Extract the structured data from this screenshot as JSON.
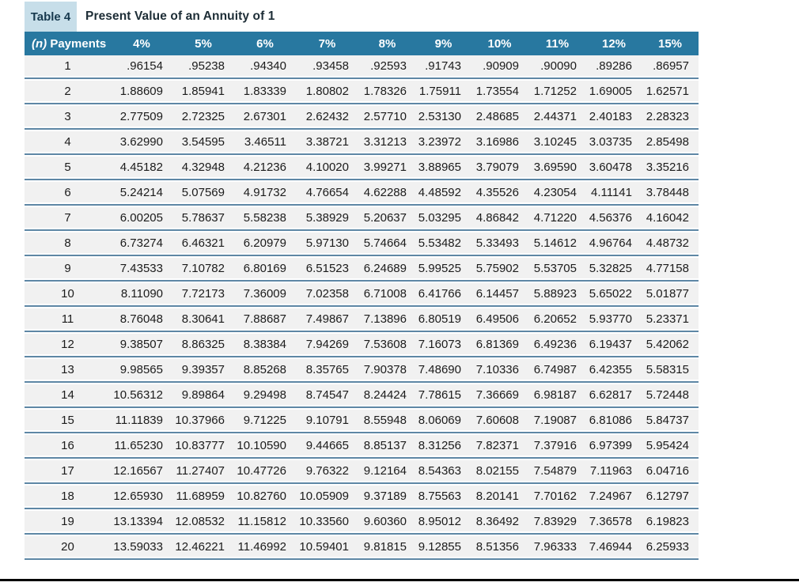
{
  "title": {
    "badge": "Table 4",
    "text": "Present Value of an Annuity of 1"
  },
  "table": {
    "header": {
      "payments_italic": "(n)",
      "payments_label": "Payments",
      "rates": [
        "4%",
        "5%",
        "6%",
        "7%",
        "8%",
        "9%",
        "10%",
        "11%",
        "12%",
        "15%"
      ]
    },
    "rows": [
      [
        "1",
        ".96154",
        ".95238",
        ".94340",
        ".93458",
        ".92593",
        ".91743",
        ".90909",
        ".90090",
        ".89286",
        ".86957"
      ],
      [
        "2",
        "1.88609",
        "1.85941",
        "1.83339",
        "1.80802",
        "1.78326",
        "1.75911",
        "1.73554",
        "1.71252",
        "1.69005",
        "1.62571"
      ],
      [
        "3",
        "2.77509",
        "2.72325",
        "2.67301",
        "2.62432",
        "2.57710",
        "2.53130",
        "2.48685",
        "2.44371",
        "2.40183",
        "2.28323"
      ],
      [
        "4",
        "3.62990",
        "3.54595",
        "3.46511",
        "3.38721",
        "3.31213",
        "3.23972",
        "3.16986",
        "3.10245",
        "3.03735",
        "2.85498"
      ],
      [
        "5",
        "4.45182",
        "4.32948",
        "4.21236",
        "4.10020",
        "3.99271",
        "3.88965",
        "3.79079",
        "3.69590",
        "3.60478",
        "3.35216"
      ],
      [
        "6",
        "5.24214",
        "5.07569",
        "4.91732",
        "4.76654",
        "4.62288",
        "4.48592",
        "4.35526",
        "4.23054",
        "4.11141",
        "3.78448"
      ],
      [
        "7",
        "6.00205",
        "5.78637",
        "5.58238",
        "5.38929",
        "5.20637",
        "5.03295",
        "4.86842",
        "4.71220",
        "4.56376",
        "4.16042"
      ],
      [
        "8",
        "6.73274",
        "6.46321",
        "6.20979",
        "5.97130",
        "5.74664",
        "5.53482",
        "5.33493",
        "5.14612",
        "4.96764",
        "4.48732"
      ],
      [
        "9",
        "7.43533",
        "7.10782",
        "6.80169",
        "6.51523",
        "6.24689",
        "5.99525",
        "5.75902",
        "5.53705",
        "5.32825",
        "4.77158"
      ],
      [
        "10",
        "8.11090",
        "7.72173",
        "7.36009",
        "7.02358",
        "6.71008",
        "6.41766",
        "6.14457",
        "5.88923",
        "5.65022",
        "5.01877"
      ],
      [
        "11",
        "8.76048",
        "8.30641",
        "7.88687",
        "7.49867",
        "7.13896",
        "6.80519",
        "6.49506",
        "6.20652",
        "5.93770",
        "5.23371"
      ],
      [
        "12",
        "9.38507",
        "8.86325",
        "8.38384",
        "7.94269",
        "7.53608",
        "7.16073",
        "6.81369",
        "6.49236",
        "6.19437",
        "5.42062"
      ],
      [
        "13",
        "9.98565",
        "9.39357",
        "8.85268",
        "8.35765",
        "7.90378",
        "7.48690",
        "7.10336",
        "6.74987",
        "6.42355",
        "5.58315"
      ],
      [
        "14",
        "10.56312",
        "9.89864",
        "9.29498",
        "8.74547",
        "8.24424",
        "7.78615",
        "7.36669",
        "6.98187",
        "6.62817",
        "5.72448"
      ],
      [
        "15",
        "11.11839",
        "10.37966",
        "9.71225",
        "9.10791",
        "8.55948",
        "8.06069",
        "7.60608",
        "7.19087",
        "6.81086",
        "5.84737"
      ],
      [
        "16",
        "11.65230",
        "10.83777",
        "10.10590",
        "9.44665",
        "8.85137",
        "8.31256",
        "7.82371",
        "7.37916",
        "6.97399",
        "5.95424"
      ],
      [
        "17",
        "12.16567",
        "11.27407",
        "10.47726",
        "9.76322",
        "9.12164",
        "8.54363",
        "8.02155",
        "7.54879",
        "7.11963",
        "6.04716"
      ],
      [
        "18",
        "12.65930",
        "11.68959",
        "10.82760",
        "10.05909",
        "9.37189",
        "8.75563",
        "8.20141",
        "7.70162",
        "7.24967",
        "6.12797"
      ],
      [
        "19",
        "13.13394",
        "12.08532",
        "11.15812",
        "10.33560",
        "9.60360",
        "8.95012",
        "8.36492",
        "7.83929",
        "7.36578",
        "6.19823"
      ],
      [
        "20",
        "13.59033",
        "12.46221",
        "11.46992",
        "10.59401",
        "9.81815",
        "9.12855",
        "8.51356",
        "7.96333",
        "7.46944",
        "6.25933"
      ]
    ]
  },
  "colors": {
    "header_bg": "#2878A0",
    "badge_bg": "#C7DEE9",
    "badge_text": "#17394E",
    "row_bg": "#F1F1F1",
    "divider": "#5E87A5",
    "bottom_rule": "#000000"
  }
}
